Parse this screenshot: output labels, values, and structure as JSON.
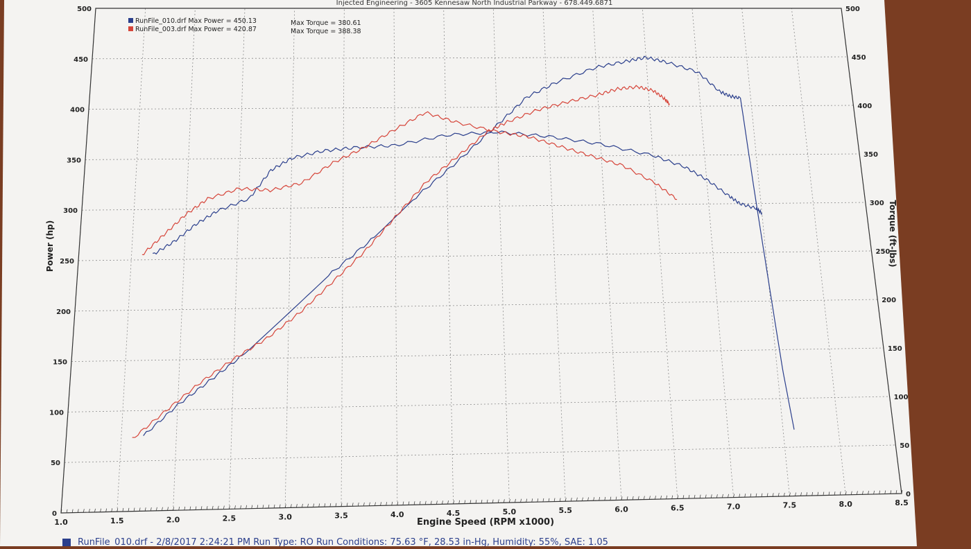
{
  "header_text": "Injected Engineering - 3605 Kennesaw North Industrial Parkway - 678.449.6871",
  "footer_text": "RunFile_010.drf - 2/8/2017 2:24:21 PM  Run Type: RO  Run Conditions: 75.63 °F, 28.53 in-Hg,  Humidity:  55%, SAE: 1.05",
  "colors": {
    "run010": "#2b3f8c",
    "run003": "#d6453a",
    "paper": "#f4f3f1",
    "grid": "#8a8a8a"
  },
  "legend": [
    {
      "label": "RunFile_010.drf Max Power = 450.13",
      "torque": "Max Torque = 380.61",
      "color": "#2b3f8c"
    },
    {
      "label": "RunFile_003.drf Max Power = 420.87",
      "torque": "Max Torque = 388.38",
      "color": "#d6453a"
    }
  ],
  "chart_data": {
    "type": "line",
    "title": "",
    "xlabel": "Engine Speed (RPM x1000)",
    "ylabel": "Power (hp)",
    "y2label": "Torque (ft-lbs)",
    "xlim": [
      1.0,
      8.5
    ],
    "ylim": [
      0,
      500
    ],
    "y2lim": [
      0,
      500
    ],
    "x_ticks": [
      "1.0",
      "1.5",
      "2.0",
      "2.5",
      "3.0",
      "3.5",
      "4.0",
      "4.5",
      "5.0",
      "5.5",
      "6.0",
      "6.5",
      "7.0",
      "7.5",
      "8.0",
      "8.5"
    ],
    "y_ticks": [
      "0",
      "50",
      "100",
      "150",
      "200",
      "250",
      "300",
      "350",
      "400",
      "450",
      "500"
    ],
    "y2_ticks": [
      "0",
      "50",
      "100",
      "150",
      "200",
      "250",
      "300",
      "350",
      "400",
      "450",
      "500"
    ],
    "grid": true,
    "legend_position": "top-left",
    "series": [
      {
        "name": "RunFile_010.drf",
        "quantity": "Power (hp)",
        "color": "#2b3f8c",
        "x": [
          1.7,
          2.0,
          2.3,
          2.6,
          3.0,
          3.4,
          3.8,
          4.2,
          4.6,
          5.0,
          5.3,
          5.6,
          6.0,
          6.3,
          6.5,
          6.7,
          7.0,
          7.2,
          7.3,
          7.4,
          7.45,
          7.5,
          7.55,
          7.6
        ],
        "y": [
          75,
          105,
          130,
          155,
          195,
          235,
          270,
          310,
          345,
          382,
          410,
          425,
          440,
          446,
          450,
          445,
          435,
          415,
          410,
          408,
          310,
          220,
          130,
          68
        ]
      },
      {
        "name": "RunFile_010.drf",
        "quantity": "Torque (ft-lbs)",
        "color": "#2b3f8c",
        "x": [
          1.7,
          1.9,
          2.1,
          2.3,
          2.6,
          2.8,
          3.0,
          3.3,
          3.6,
          4.0,
          4.5,
          5.0,
          5.5,
          6.0,
          6.5,
          6.8,
          7.0,
          7.2,
          7.3,
          7.45,
          7.5
        ],
        "y": [
          255,
          268,
          285,
          298,
          310,
          338,
          350,
          357,
          360,
          362,
          372,
          375,
          370,
          362,
          350,
          338,
          325,
          308,
          300,
          295,
          290
        ]
      },
      {
        "name": "RunFile_003.drf",
        "quantity": "Power (hp)",
        "color": "#d6453a",
        "x": [
          1.6,
          1.9,
          2.2,
          2.5,
          2.8,
          3.1,
          3.4,
          3.7,
          4.0,
          4.3,
          4.6,
          4.9,
          5.1,
          5.4,
          5.7,
          6.0,
          6.2,
          6.4,
          6.55,
          6.65,
          6.7
        ],
        "y": [
          72,
          100,
          127,
          150,
          170,
          195,
          225,
          255,
          290,
          325,
          350,
          375,
          385,
          397,
          405,
          412,
          418,
          420,
          416,
          408,
          402
        ]
      },
      {
        "name": "RunFile_003.drf",
        "quantity": "Torque (ft-lbs)",
        "color": "#d6453a",
        "x": [
          1.6,
          1.8,
          2.0,
          2.2,
          2.5,
          2.8,
          3.1,
          3.4,
          3.7,
          4.0,
          4.3,
          4.6,
          5.0,
          5.3,
          5.6,
          5.9,
          6.2,
          6.5,
          6.7
        ],
        "y": [
          255,
          275,
          295,
          310,
          320,
          318,
          325,
          345,
          360,
          378,
          395,
          385,
          375,
          370,
          360,
          350,
          340,
          322,
          305
        ]
      }
    ]
  }
}
